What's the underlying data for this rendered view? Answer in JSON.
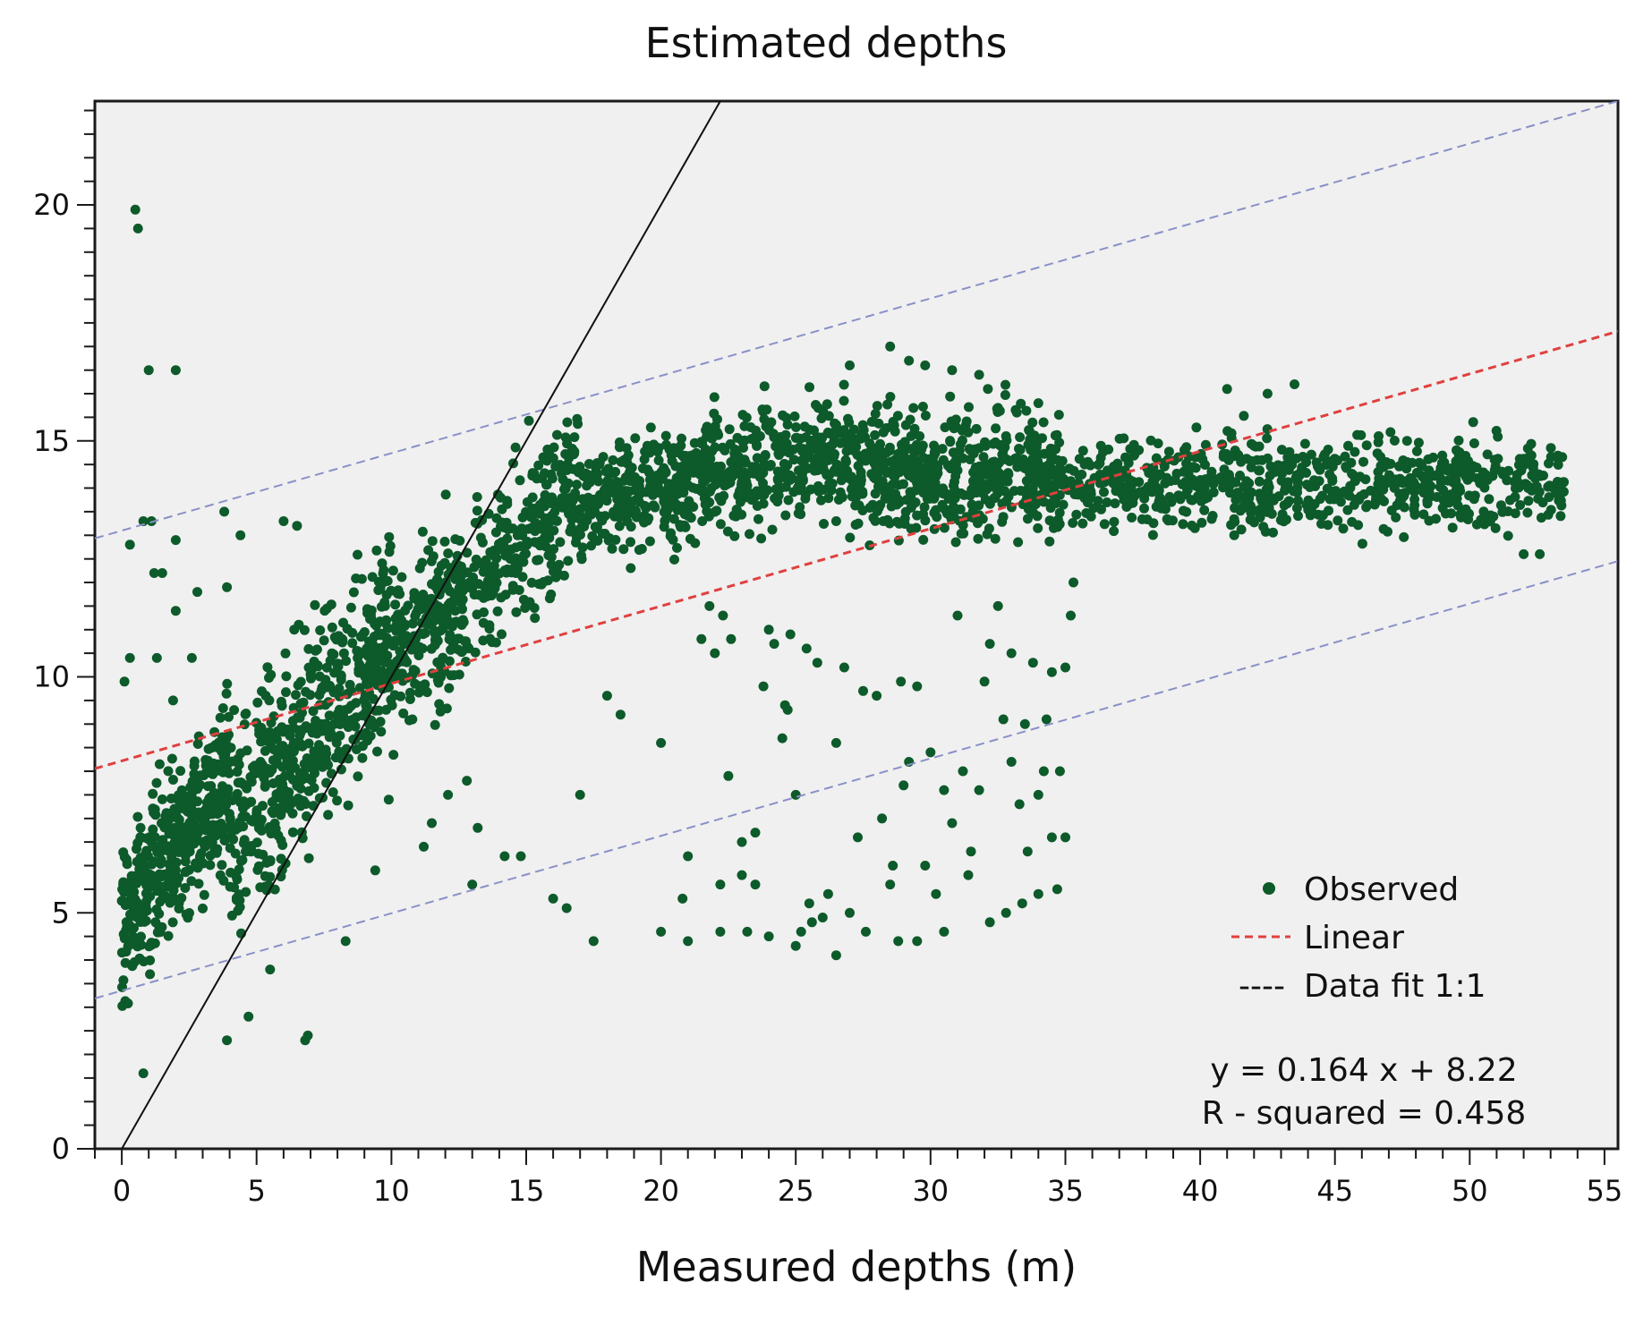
{
  "chart_data": {
    "type": "scatter",
    "title": "Estimated depths",
    "xlabel": "Measured depths (m)",
    "ylabel": "",
    "xlim": [
      -1,
      55.5
    ],
    "ylim": [
      0,
      22.2
    ],
    "xticks": [
      0,
      5,
      10,
      15,
      20,
      25,
      30,
      35,
      40,
      45,
      50,
      55
    ],
    "xtick_labels": [
      "0",
      "5",
      "10",
      "15",
      "20",
      "25",
      "30",
      "35",
      "40",
      "45",
      "50",
      "55"
    ],
    "yticks": [
      0,
      5,
      10,
      15,
      20
    ],
    "ytick_labels": [
      "0",
      "5",
      "10",
      "15",
      "20"
    ],
    "grid": false,
    "colors": {
      "plot_background": "#f0f0f0",
      "points": "#0d5a2a",
      "linear": "#e04040",
      "bounds": "#8a90c8",
      "identity": "#111111"
    },
    "series": [
      {
        "name": "Observed",
        "kind": "scatter",
        "clusters": [
          {
            "x_range": [
              0,
              4
            ],
            "y_center": "0.8*x+4.8",
            "y_spread": 1.4,
            "count": 420
          },
          {
            "x_range": [
              4,
              10
            ],
            "y_center": "0.75*x+3.5",
            "y_spread": 1.8,
            "count": 520
          },
          {
            "x_range": [
              10,
              17
            ],
            "y_center": "0.55*x+4.8",
            "y_spread": 1.4,
            "count": 480
          },
          {
            "x_range": [
              17,
              27
            ],
            "y_center": "0.12*x+11.6",
            "y_spread": 1.0,
            "count": 620
          },
          {
            "x_range": [
              27,
              35
            ],
            "y_center": "14.3",
            "y_spread": 1.1,
            "count": 520
          },
          {
            "x_range": [
              35,
              53.5
            ],
            "y_center": "14.1",
            "y_spread": 0.8,
            "count": 700
          }
        ],
        "outliers": [
          [
            0.5,
            19.9
          ],
          [
            0.6,
            19.5
          ],
          [
            1.0,
            16.5
          ],
          [
            2.0,
            16.5
          ],
          [
            0.3,
            12.8
          ],
          [
            1.2,
            12.2
          ],
          [
            1.5,
            12.2
          ],
          [
            0.8,
            13.3
          ],
          [
            1.1,
            13.3
          ],
          [
            2.0,
            12.9
          ],
          [
            3.8,
            13.5
          ],
          [
            2.8,
            11.8
          ],
          [
            3.9,
            11.9
          ],
          [
            4.4,
            13.0
          ],
          [
            6.0,
            13.3
          ],
          [
            6.5,
            13.2
          ],
          [
            0.1,
            9.9
          ],
          [
            0.3,
            10.4
          ],
          [
            1.3,
            10.4
          ],
          [
            1.9,
            9.5
          ],
          [
            2.6,
            10.4
          ],
          [
            2.0,
            11.4
          ],
          [
            0.8,
            1.6
          ],
          [
            6.8,
            2.3
          ],
          [
            6.9,
            2.4
          ],
          [
            3.9,
            2.3
          ],
          [
            4.7,
            2.8
          ],
          [
            5.5,
            3.8
          ],
          [
            8.3,
            4.4
          ],
          [
            9.4,
            5.9
          ],
          [
            9.9,
            7.4
          ],
          [
            11.2,
            6.4
          ],
          [
            11.5,
            6.9
          ],
          [
            12.1,
            7.5
          ],
          [
            12.8,
            7.8
          ],
          [
            13.2,
            6.8
          ],
          [
            13.0,
            5.6
          ],
          [
            14.2,
            6.2
          ],
          [
            14.8,
            6.2
          ],
          [
            16.0,
            5.3
          ],
          [
            16.5,
            5.1
          ],
          [
            17.0,
            7.5
          ],
          [
            17.5,
            4.4
          ],
          [
            18.0,
            9.6
          ],
          [
            18.5,
            9.2
          ],
          [
            20.0,
            8.6
          ],
          [
            20.0,
            4.6
          ],
          [
            20.8,
            5.3
          ],
          [
            21.0,
            4.4
          ],
          [
            21.0,
            6.2
          ],
          [
            21.5,
            10.8
          ],
          [
            21.8,
            11.5
          ],
          [
            22.0,
            10.5
          ],
          [
            22.3,
            11.3
          ],
          [
            22.5,
            7.9
          ],
          [
            22.6,
            10.8
          ],
          [
            22.2,
            4.6
          ],
          [
            22.2,
            5.6
          ],
          [
            23.0,
            6.5
          ],
          [
            23.0,
            5.8
          ],
          [
            23.5,
            6.7
          ],
          [
            23.5,
            5.6
          ],
          [
            23.2,
            4.6
          ],
          [
            23.8,
            9.8
          ],
          [
            24.0,
            4.5
          ],
          [
            24.0,
            11.0
          ],
          [
            24.2,
            10.7
          ],
          [
            24.5,
            8.7
          ],
          [
            24.6,
            9.4
          ],
          [
            24.7,
            9.3
          ],
          [
            24.8,
            10.9
          ],
          [
            25.0,
            4.3
          ],
          [
            25.2,
            4.6
          ],
          [
            25.0,
            7.5
          ],
          [
            25.4,
            10.6
          ],
          [
            25.5,
            5.2
          ],
          [
            25.6,
            4.8
          ],
          [
            25.8,
            10.3
          ],
          [
            26.0,
            4.9
          ],
          [
            26.2,
            5.4
          ],
          [
            26.5,
            8.6
          ],
          [
            26.5,
            4.1
          ],
          [
            26.8,
            10.2
          ],
          [
            27.0,
            5.0
          ],
          [
            27.3,
            6.6
          ],
          [
            27.5,
            9.7
          ],
          [
            27.6,
            4.6
          ],
          [
            28.0,
            9.6
          ],
          [
            28.2,
            7.0
          ],
          [
            28.5,
            5.6
          ],
          [
            28.6,
            6.0
          ],
          [
            28.8,
            4.4
          ],
          [
            28.9,
            9.9
          ],
          [
            29.0,
            7.7
          ],
          [
            29.2,
            8.2
          ],
          [
            29.5,
            4.4
          ],
          [
            29.8,
            6.0
          ],
          [
            29.5,
            9.8
          ],
          [
            30.0,
            8.4
          ],
          [
            30.2,
            5.4
          ],
          [
            30.5,
            7.6
          ],
          [
            30.5,
            4.6
          ],
          [
            30.8,
            6.9
          ],
          [
            31.0,
            11.3
          ],
          [
            31.2,
            8.0
          ],
          [
            31.4,
            5.8
          ],
          [
            31.5,
            6.3
          ],
          [
            31.8,
            7.6
          ],
          [
            32.0,
            9.9
          ],
          [
            32.2,
            4.8
          ],
          [
            32.2,
            10.7
          ],
          [
            32.5,
            11.5
          ],
          [
            32.7,
            9.1
          ],
          [
            32.8,
            5.0
          ],
          [
            33.0,
            8.2
          ],
          [
            33.0,
            10.5
          ],
          [
            33.3,
            7.3
          ],
          [
            33.4,
            5.2
          ],
          [
            33.5,
            9.0
          ],
          [
            33.6,
            6.3
          ],
          [
            33.8,
            10.3
          ],
          [
            34.0,
            7.5
          ],
          [
            34.0,
            5.4
          ],
          [
            34.2,
            8.0
          ],
          [
            34.3,
            9.1
          ],
          [
            34.5,
            6.6
          ],
          [
            34.5,
            10.1
          ],
          [
            34.7,
            5.5
          ],
          [
            34.8,
            8.0
          ],
          [
            35.0,
            10.2
          ],
          [
            35.0,
            6.6
          ],
          [
            35.2,
            11.3
          ],
          [
            35.3,
            12.0
          ],
          [
            26.5,
            13.3
          ],
          [
            27.0,
            16.6
          ],
          [
            28.5,
            17.0
          ],
          [
            29.2,
            16.7
          ],
          [
            29.8,
            16.6
          ],
          [
            30.8,
            16.5
          ],
          [
            31.8,
            16.4
          ],
          [
            32.5,
            15.7
          ],
          [
            33.2,
            15.6
          ],
          [
            34.0,
            15.8
          ],
          [
            41.0,
            16.1
          ],
          [
            42.5,
            16.0
          ],
          [
            43.5,
            16.2
          ],
          [
            52.0,
            12.6
          ],
          [
            52.6,
            12.6
          ]
        ]
      }
    ],
    "lines": [
      {
        "name": "Linear",
        "slope": 0.164,
        "intercept": 8.22,
        "style": "dashed"
      },
      {
        "name": "Upper bound",
        "slope": 0.164,
        "intercept": 13.1,
        "style": "dashed",
        "in_legend": false
      },
      {
        "name": "Lower bound",
        "slope": 0.164,
        "intercept": 3.35,
        "style": "dashed",
        "in_legend": false
      },
      {
        "name": "Data fit 1:1",
        "slope": 1.0,
        "intercept": 0.0,
        "style": "solid"
      }
    ],
    "legend": {
      "position": "bottom-right",
      "entries": [
        {
          "label": "Observed",
          "symbol": "dot"
        },
        {
          "label": "Linear",
          "symbol": "red-dash"
        },
        {
          "label": "Data fit 1:1",
          "symbol": "black-dash",
          "prefix": "----"
        }
      ]
    },
    "annotations": {
      "equation": "y = 0.164 x + 8.22",
      "r_squared": "R - squared = 0.458"
    }
  }
}
